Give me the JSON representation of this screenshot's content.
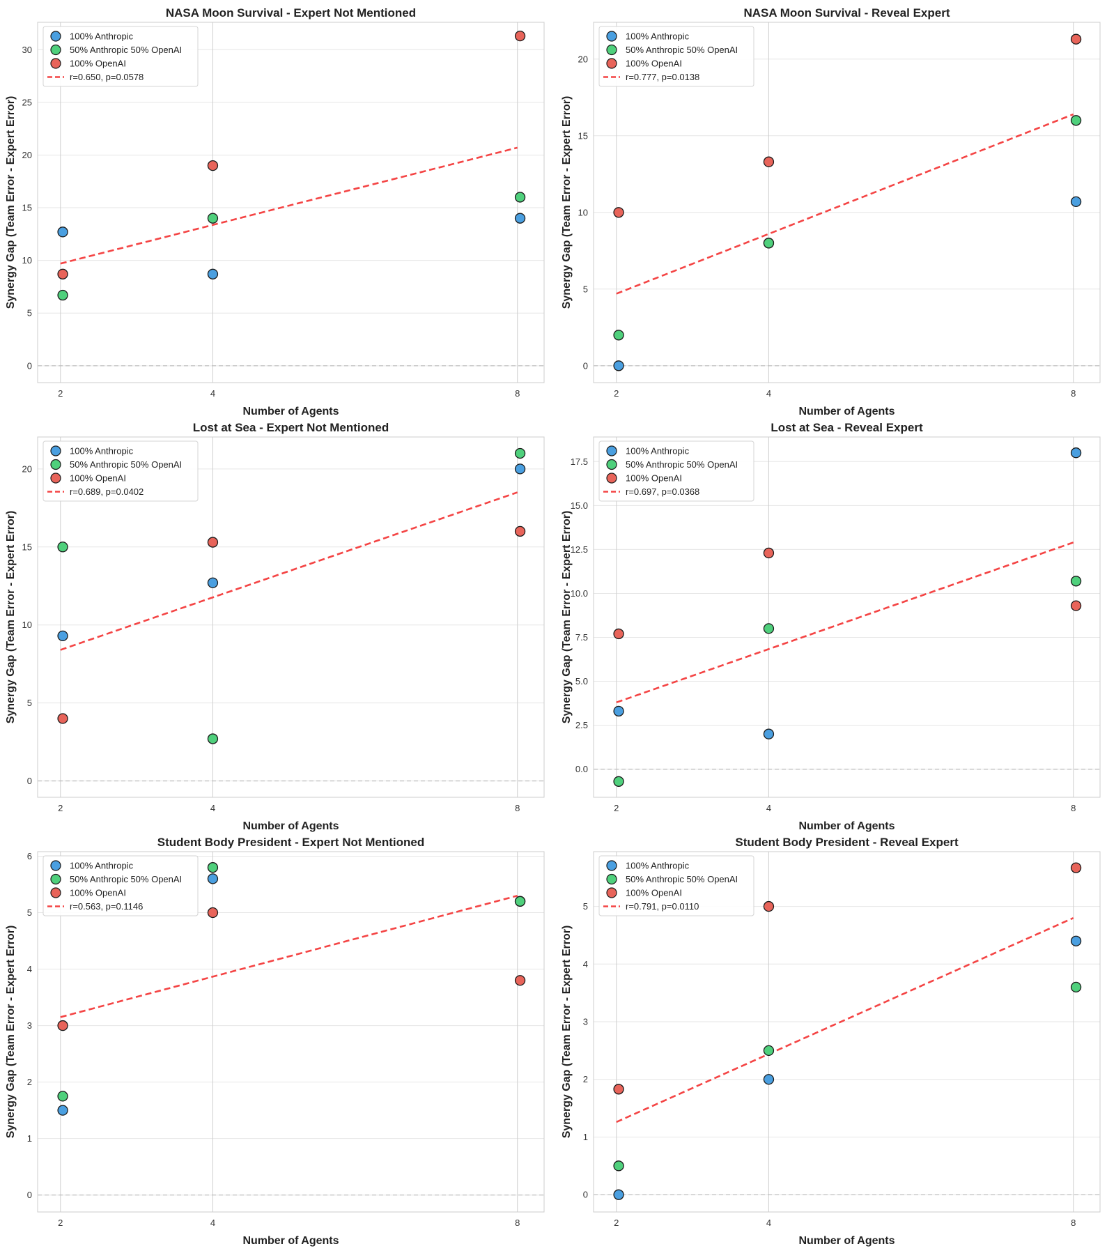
{
  "colors": {
    "anthropic": "#4A9FE0",
    "mixed": "#4FD07C",
    "openai": "#E8645A",
    "trend": "#F44444",
    "grid": "#E6E6E6",
    "vgrid": "#CFCFCF",
    "zero": "#BBBBBB",
    "spine": "#CCCCCC"
  },
  "legend": {
    "anthropic": "100% Anthropic",
    "mixed": "50% Anthropic 50% OpenAI",
    "openai": "100% OpenAI"
  },
  "chart_data": [
    {
      "type": "scatter",
      "title": "NASA Moon Survival - Expert Not Mentioned",
      "xlabel": "Number of Agents",
      "ylabel": "Synergy Gap (Team Error - Expert Error)",
      "xticks": [
        2,
        4,
        8
      ],
      "xlim": [
        1.7,
        8.35
      ],
      "ylim": [
        -1.6,
        32.6
      ],
      "yticks": [
        0,
        5,
        10,
        15,
        20,
        25,
        30
      ],
      "ytick_decimals": 0,
      "legend_position": "upper-left",
      "series": [
        {
          "name": "100% Anthropic",
          "key": "anthropic",
          "x": [
            2,
            4,
            8
          ],
          "values": [
            12.7,
            8.7,
            14.0
          ]
        },
        {
          "name": "50% Anthropic 50% OpenAI",
          "key": "mixed",
          "x": [
            2,
            4,
            8
          ],
          "values": [
            6.7,
            14.0,
            16.0
          ]
        },
        {
          "name": "100% OpenAI",
          "key": "openai",
          "x": [
            2,
            4,
            8
          ],
          "values": [
            8.7,
            19.0,
            31.3
          ]
        }
      ],
      "trend": {
        "label": "r=0.650, p=0.0578",
        "x": [
          2,
          8
        ],
        "y": [
          9.7,
          20.7
        ]
      }
    },
    {
      "type": "scatter",
      "title": "NASA Moon Survival - Reveal Expert",
      "xlabel": "Number of Agents",
      "ylabel": "Synergy Gap (Team Error - Expert Error)",
      "xticks": [
        2,
        4,
        8
      ],
      "xlim": [
        1.7,
        8.35
      ],
      "ylim": [
        -1.1,
        22.4
      ],
      "yticks": [
        0,
        5,
        10,
        15,
        20
      ],
      "ytick_decimals": 0,
      "legend_position": "upper-left",
      "series": [
        {
          "name": "100% Anthropic",
          "key": "anthropic",
          "x": [
            2,
            4,
            8
          ],
          "values": [
            0.0,
            8.0,
            10.7
          ]
        },
        {
          "name": "50% Anthropic 50% OpenAI",
          "key": "mixed",
          "x": [
            2,
            4,
            8
          ],
          "values": [
            2.0,
            8.0,
            16.0
          ]
        },
        {
          "name": "100% OpenAI",
          "key": "openai",
          "x": [
            2,
            4,
            8
          ],
          "values": [
            10.0,
            13.3,
            21.3
          ]
        }
      ],
      "trend": {
        "label": "r=0.777, p=0.0138",
        "x": [
          2,
          8
        ],
        "y": [
          4.7,
          16.4
        ]
      }
    },
    {
      "type": "scatter",
      "title": "Lost at Sea - Expert Not Mentioned",
      "xlabel": "Number of Agents",
      "ylabel": "Synergy Gap (Team Error - Expert Error)",
      "xticks": [
        2,
        4,
        8
      ],
      "xlim": [
        1.7,
        8.35
      ],
      "ylim": [
        -1.05,
        22.05
      ],
      "yticks": [
        0,
        5,
        10,
        15,
        20
      ],
      "ytick_decimals": 0,
      "legend_position": "upper-left",
      "series": [
        {
          "name": "100% Anthropic",
          "key": "anthropic",
          "x": [
            2,
            4,
            8
          ],
          "values": [
            9.3,
            12.7,
            20.0
          ]
        },
        {
          "name": "50% Anthropic 50% OpenAI",
          "key": "mixed",
          "x": [
            2,
            4,
            8
          ],
          "values": [
            15.0,
            2.7,
            21.0
          ]
        },
        {
          "name": "100% OpenAI",
          "key": "openai",
          "x": [
            2,
            4,
            8
          ],
          "values": [
            4.0,
            15.3,
            16.0
          ]
        }
      ],
      "trend": {
        "label": "r=0.689, p=0.0402",
        "x": [
          2,
          8
        ],
        "y": [
          8.4,
          18.5
        ]
      }
    },
    {
      "type": "scatter",
      "title": "Lost at Sea - Reveal Expert",
      "xlabel": "Number of Agents",
      "ylabel": "Synergy Gap (Team Error - Expert Error)",
      "xticks": [
        2,
        4,
        8
      ],
      "xlim": [
        1.7,
        8.35
      ],
      "ylim": [
        -1.6,
        18.9
      ],
      "yticks": [
        0.0,
        2.5,
        5.0,
        7.5,
        10.0,
        12.5,
        15.0,
        17.5
      ],
      "ytick_decimals": 1,
      "legend_position": "upper-left",
      "series": [
        {
          "name": "100% Anthropic",
          "key": "anthropic",
          "x": [
            2,
            4,
            8
          ],
          "values": [
            3.3,
            2.0,
            18.0
          ]
        },
        {
          "name": "50% Anthropic 50% OpenAI",
          "key": "mixed",
          "x": [
            2,
            4,
            8
          ],
          "values": [
            -0.7,
            8.0,
            10.7
          ]
        },
        {
          "name": "100% OpenAI",
          "key": "openai",
          "x": [
            2,
            4,
            8
          ],
          "values": [
            7.7,
            12.3,
            9.3
          ]
        }
      ],
      "trend": {
        "label": "r=0.697, p=0.0368",
        "x": [
          2,
          8
        ],
        "y": [
          3.8,
          12.9
        ]
      }
    },
    {
      "type": "scatter",
      "title": "Student Body President - Expert Not Mentioned",
      "xlabel": "Number of Agents",
      "ylabel": "Synergy Gap (Team Error - Expert Error)",
      "xticks": [
        2,
        4,
        8
      ],
      "xlim": [
        1.7,
        8.35
      ],
      "ylim": [
        -0.3,
        6.08
      ],
      "yticks": [
        0,
        1,
        2,
        3,
        4,
        5,
        6
      ],
      "ytick_decimals": 0,
      "legend_position": "upper-left",
      "series": [
        {
          "name": "100% Anthropic",
          "key": "anthropic",
          "x": [
            2,
            4,
            8
          ],
          "values": [
            1.5,
            5.6,
            5.2
          ]
        },
        {
          "name": "50% Anthropic 50% OpenAI",
          "key": "mixed",
          "x": [
            2,
            4,
            8
          ],
          "values": [
            1.75,
            5.8,
            5.2
          ]
        },
        {
          "name": "100% OpenAI",
          "key": "openai",
          "x": [
            2,
            4,
            8
          ],
          "values": [
            3.0,
            5.0,
            3.8
          ]
        }
      ],
      "trend": {
        "label": "r=0.563, p=0.1146",
        "x": [
          2,
          8
        ],
        "y": [
          3.15,
          5.3
        ]
      }
    },
    {
      "type": "scatter",
      "title": "Student Body President - Reveal Expert",
      "xlabel": "Number of Agents",
      "ylabel": "Synergy Gap (Team Error - Expert Error)",
      "xticks": [
        2,
        4,
        8
      ],
      "xlim": [
        1.7,
        8.35
      ],
      "ylim": [
        -0.3,
        5.95
      ],
      "yticks": [
        0,
        1,
        2,
        3,
        4,
        5
      ],
      "ytick_decimals": 0,
      "legend_position": "upper-left",
      "series": [
        {
          "name": "100% Anthropic",
          "key": "anthropic",
          "x": [
            2,
            4,
            8
          ],
          "values": [
            0.0,
            2.0,
            4.4
          ]
        },
        {
          "name": "50% Anthropic 50% OpenAI",
          "key": "mixed",
          "x": [
            2,
            4,
            8
          ],
          "values": [
            0.5,
            2.5,
            3.6
          ]
        },
        {
          "name": "100% OpenAI",
          "key": "openai",
          "x": [
            2,
            4,
            8
          ],
          "values": [
            1.83,
            5.0,
            5.67
          ]
        }
      ],
      "trend": {
        "label": "r=0.791, p=0.0110",
        "x": [
          2,
          8
        ],
        "y": [
          1.26,
          4.8
        ]
      }
    }
  ]
}
